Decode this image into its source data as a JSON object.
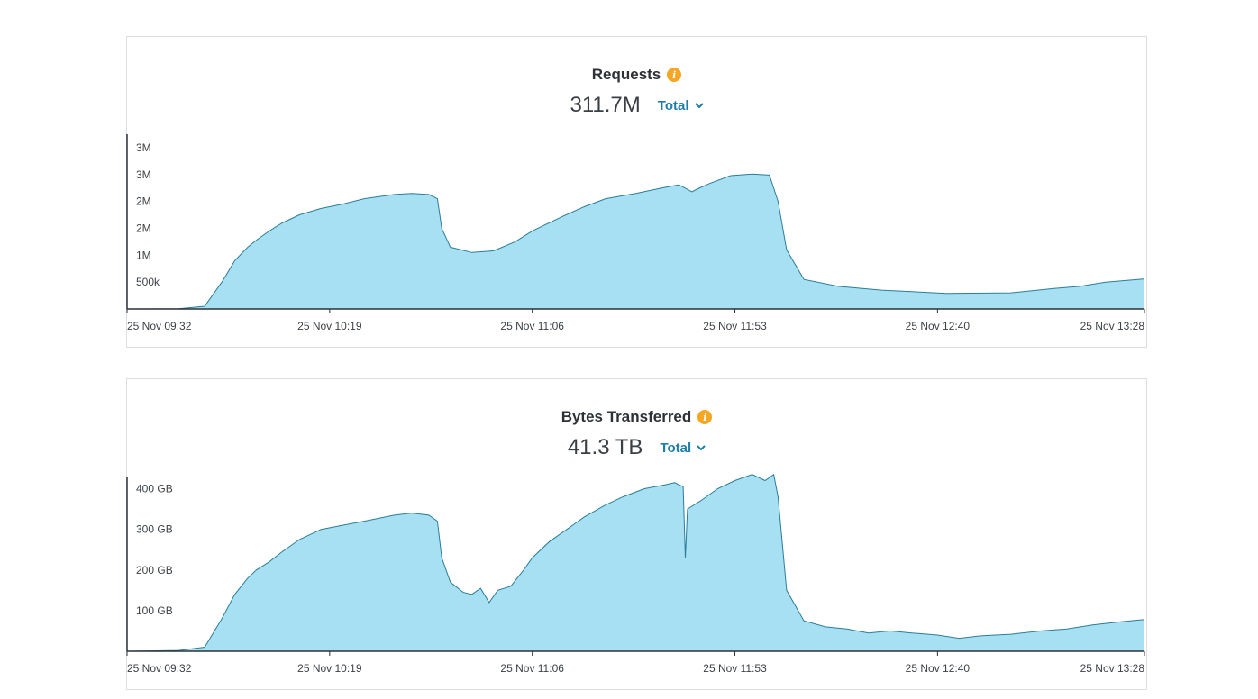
{
  "panels": [
    {
      "title": "Requests",
      "total_value": "311.7M",
      "aggregation": "Total",
      "icon": "info-icon",
      "chart_data": {
        "type": "area",
        "title": "Requests",
        "xlabel": "",
        "ylabel": "",
        "ylim": [
          0,
          3250000
        ],
        "y_ticks": [
          {
            "value": 500000,
            "label": "500k"
          },
          {
            "value": 1000000,
            "label": "1M"
          },
          {
            "value": 1500000,
            "label": "2M"
          },
          {
            "value": 2000000,
            "label": "2M"
          },
          {
            "value": 2500000,
            "label": "3M"
          },
          {
            "value": 3000000,
            "label": "3M"
          }
        ],
        "x_ticks": [
          {
            "t": 0,
            "label": "25 Nov 09:32"
          },
          {
            "t": 47,
            "label": "25 Nov 10:19"
          },
          {
            "t": 94,
            "label": "25 Nov 11:06"
          },
          {
            "t": 141,
            "label": "25 Nov 11:53"
          },
          {
            "t": 188,
            "label": "25 Nov 12:40"
          },
          {
            "t": 236,
            "label": "25 Nov 13:28"
          }
        ],
        "x_unit": "minutes since 25 Nov 09:32",
        "color": "#a6e0f2",
        "line_color": "#2a7d9b",
        "series": [
          {
            "name": "Requests",
            "points": [
              [
                0,
                0
              ],
              [
                12,
                5000
              ],
              [
                18,
                50000
              ],
              [
                22,
                500000
              ],
              [
                25,
                900000
              ],
              [
                28,
                1150000
              ],
              [
                30,
                1280000
              ],
              [
                33,
                1450000
              ],
              [
                36,
                1600000
              ],
              [
                40,
                1750000
              ],
              [
                45,
                1870000
              ],
              [
                50,
                1950000
              ],
              [
                55,
                2050000
              ],
              [
                62,
                2130000
              ],
              [
                66,
                2150000
              ],
              [
                70,
                2130000
              ],
              [
                72,
                2050000
              ],
              [
                73,
                1500000
              ],
              [
                75,
                1150000
              ],
              [
                80,
                1050000
              ],
              [
                85,
                1080000
              ],
              [
                90,
                1250000
              ],
              [
                94,
                1450000
              ],
              [
                101,
                1720000
              ],
              [
                106,
                1900000
              ],
              [
                111,
                2050000
              ],
              [
                118,
                2150000
              ],
              [
                124,
                2250000
              ],
              [
                128,
                2310000
              ],
              [
                131,
                2180000
              ],
              [
                132,
                2220000
              ],
              [
                135,
                2330000
              ],
              [
                140,
                2480000
              ],
              [
                145,
                2510000
              ],
              [
                149,
                2490000
              ],
              [
                151,
                2000000
              ],
              [
                153,
                1100000
              ],
              [
                157,
                550000
              ],
              [
                165,
                420000
              ],
              [
                175,
                350000
              ],
              [
                190,
                290000
              ],
              [
                205,
                300000
              ],
              [
                215,
                380000
              ],
              [
                221,
                420000
              ],
              [
                227,
                500000
              ],
              [
                236,
                560000
              ]
            ]
          }
        ]
      }
    },
    {
      "title": "Bytes Transferred",
      "total_value": "41.3 TB",
      "aggregation": "Total",
      "icon": "info-icon",
      "chart_data": {
        "type": "area",
        "title": "Bytes Transferred",
        "xlabel": "",
        "ylabel": "",
        "ylim": [
          0,
          430
        ],
        "y_unit": "GB",
        "y_ticks": [
          {
            "value": 100,
            "label": "100 GB"
          },
          {
            "value": 200,
            "label": "200 GB"
          },
          {
            "value": 300,
            "label": "300 GB"
          },
          {
            "value": 400,
            "label": "400 GB"
          }
        ],
        "x_ticks": [
          {
            "t": 0,
            "label": "25 Nov 09:32"
          },
          {
            "t": 47,
            "label": "25 Nov 10:19"
          },
          {
            "t": 94,
            "label": "25 Nov 11:06"
          },
          {
            "t": 141,
            "label": "25 Nov 11:53"
          },
          {
            "t": 188,
            "label": "25 Nov 12:40"
          },
          {
            "t": 236,
            "label": "25 Nov 13:28"
          }
        ],
        "x_unit": "minutes since 25 Nov 09:32",
        "color": "#a6e0f2",
        "line_color": "#2a7d9b",
        "series": [
          {
            "name": "Bytes Transferred",
            "points": [
              [
                0,
                0
              ],
              [
                12,
                2
              ],
              [
                18,
                10
              ],
              [
                22,
                80
              ],
              [
                25,
                140
              ],
              [
                28,
                180
              ],
              [
                30,
                200
              ],
              [
                33,
                220
              ],
              [
                36,
                245
              ],
              [
                40,
                275
              ],
              [
                45,
                300
              ],
              [
                50,
                310
              ],
              [
                55,
                320
              ],
              [
                62,
                335
              ],
              [
                66,
                340
              ],
              [
                70,
                335
              ],
              [
                72,
                320
              ],
              [
                73,
                230
              ],
              [
                75,
                170
              ],
              [
                78,
                145
              ],
              [
                80,
                140
              ],
              [
                82,
                155
              ],
              [
                84,
                120
              ],
              [
                86,
                150
              ],
              [
                89,
                160
              ],
              [
                92,
                200
              ],
              [
                94,
                230
              ],
              [
                98,
                270
              ],
              [
                102,
                300
              ],
              [
                106,
                330
              ],
              [
                111,
                360
              ],
              [
                115,
                380
              ],
              [
                120,
                400
              ],
              [
                125,
                410
              ],
              [
                127,
                415
              ],
              [
                129,
                405
              ],
              [
                129.5,
                230
              ],
              [
                130,
                350
              ],
              [
                133,
                370
              ],
              [
                137,
                400
              ],
              [
                141,
                420
              ],
              [
                145,
                435
              ],
              [
                148,
                420
              ],
              [
                150,
                435
              ],
              [
                151,
                380
              ],
              [
                153,
                150
              ],
              [
                157,
                75
              ],
              [
                162,
                60
              ],
              [
                167,
                55
              ],
              [
                172,
                45
              ],
              [
                177,
                50
              ],
              [
                182,
                45
              ],
              [
                188,
                40
              ],
              [
                193,
                32
              ],
              [
                198,
                38
              ],
              [
                205,
                42
              ],
              [
                212,
                50
              ],
              [
                218,
                55
              ],
              [
                224,
                65
              ],
              [
                230,
                72
              ],
              [
                236,
                78
              ]
            ]
          }
        ]
      }
    }
  ]
}
